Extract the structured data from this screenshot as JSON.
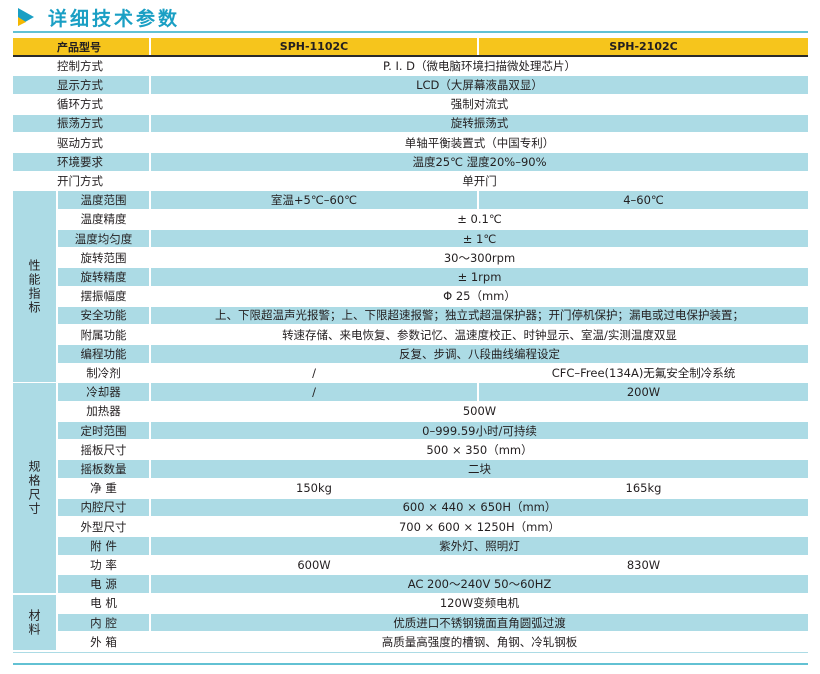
{
  "title": "详细技术参数",
  "colors": {
    "accent": "#1a9fc4",
    "header_bg": "#f6c51c",
    "row_alt": "#acdbe5"
  },
  "header": {
    "label": "产品型号",
    "models": [
      "SPH-1102C",
      "SPH-2102C"
    ]
  },
  "groups": [
    {
      "label": "性能指标",
      "start": 7,
      "count": 10
    },
    {
      "label": "规格尺寸",
      "start": 17,
      "count": 11
    },
    {
      "label": "材料",
      "start": 28,
      "count": 3
    }
  ],
  "rows": [
    {
      "label": "控制方式",
      "values": [
        "P. I. D（微电脑环境扫描微处理芯片）"
      ]
    },
    {
      "label": "显示方式",
      "values": [
        "LCD（大屏幕液晶双显）"
      ]
    },
    {
      "label": "循环方式",
      "values": [
        "强制对流式"
      ]
    },
    {
      "label": "振荡方式",
      "values": [
        "旋转振荡式"
      ]
    },
    {
      "label": "驱动方式",
      "values": [
        "单轴平衡装置式（中国专利）"
      ]
    },
    {
      "label": "环境要求",
      "values": [
        "温度25℃  湿度20%–90%"
      ]
    },
    {
      "label": "开门方式",
      "values": [
        "单开门"
      ]
    },
    {
      "label": "温度范围",
      "values": [
        "室温+5℃–60℃",
        "4–60℃"
      ]
    },
    {
      "label": "温度精度",
      "values": [
        "± 0.1℃"
      ]
    },
    {
      "label": "温度均匀度",
      "values": [
        "± 1℃"
      ]
    },
    {
      "label": "旋转范围",
      "values": [
        "30〜300rpm"
      ]
    },
    {
      "label": "旋转精度",
      "values": [
        "± 1rpm"
      ]
    },
    {
      "label": "摆振幅度",
      "values": [
        "Φ 25（mm）"
      ]
    },
    {
      "label": "安全功能",
      "values": [
        "上、下限超温声光报警；上、下限超速报警；独立式超温保护器；开门停机保护；漏电或过电保护装置；"
      ]
    },
    {
      "label": "附属功能",
      "values": [
        "转速存储、来电恢复、参数记忆、温速度校正、时钟显示、室温/实测温度双显"
      ]
    },
    {
      "label": "编程功能",
      "values": [
        "反复、步调、八段曲线编程设定"
      ]
    },
    {
      "label": "制冷剂",
      "values": [
        "/",
        "CFC–Free(134A)无氟安全制冷系统"
      ]
    },
    {
      "label": "冷却器",
      "values": [
        "/",
        "200W"
      ]
    },
    {
      "label": "加热器",
      "values": [
        "500W"
      ]
    },
    {
      "label": "定时范围",
      "values": [
        "0–999.59小时/可持续"
      ]
    },
    {
      "label": "摇板尺寸",
      "values": [
        "500 × 350（mm）"
      ]
    },
    {
      "label": "摇板数量",
      "values": [
        "二块"
      ]
    },
    {
      "label": "净  重",
      "values": [
        "150kg",
        "165kg"
      ]
    },
    {
      "label": "内腔尺寸",
      "values": [
        "600 × 440 × 650H（mm）"
      ]
    },
    {
      "label": "外型尺寸",
      "values": [
        "700 × 600 × 1250H（mm）"
      ]
    },
    {
      "label": "附  件",
      "values": [
        "紫外灯、照明灯"
      ]
    },
    {
      "label": "功  率",
      "values": [
        "600W",
        "830W"
      ]
    },
    {
      "label": "电  源",
      "values": [
        "AC 200〜240V 50〜60HZ"
      ]
    },
    {
      "label": "电  机",
      "values": [
        "120W变频电机"
      ]
    },
    {
      "label": "内  腔",
      "values": [
        "优质进口不锈钢镜面直角圆弧过渡"
      ]
    },
    {
      "label": "外  箱",
      "values": [
        "高质量高强度的槽钢、角钢、冷轧钢板"
      ]
    }
  ]
}
